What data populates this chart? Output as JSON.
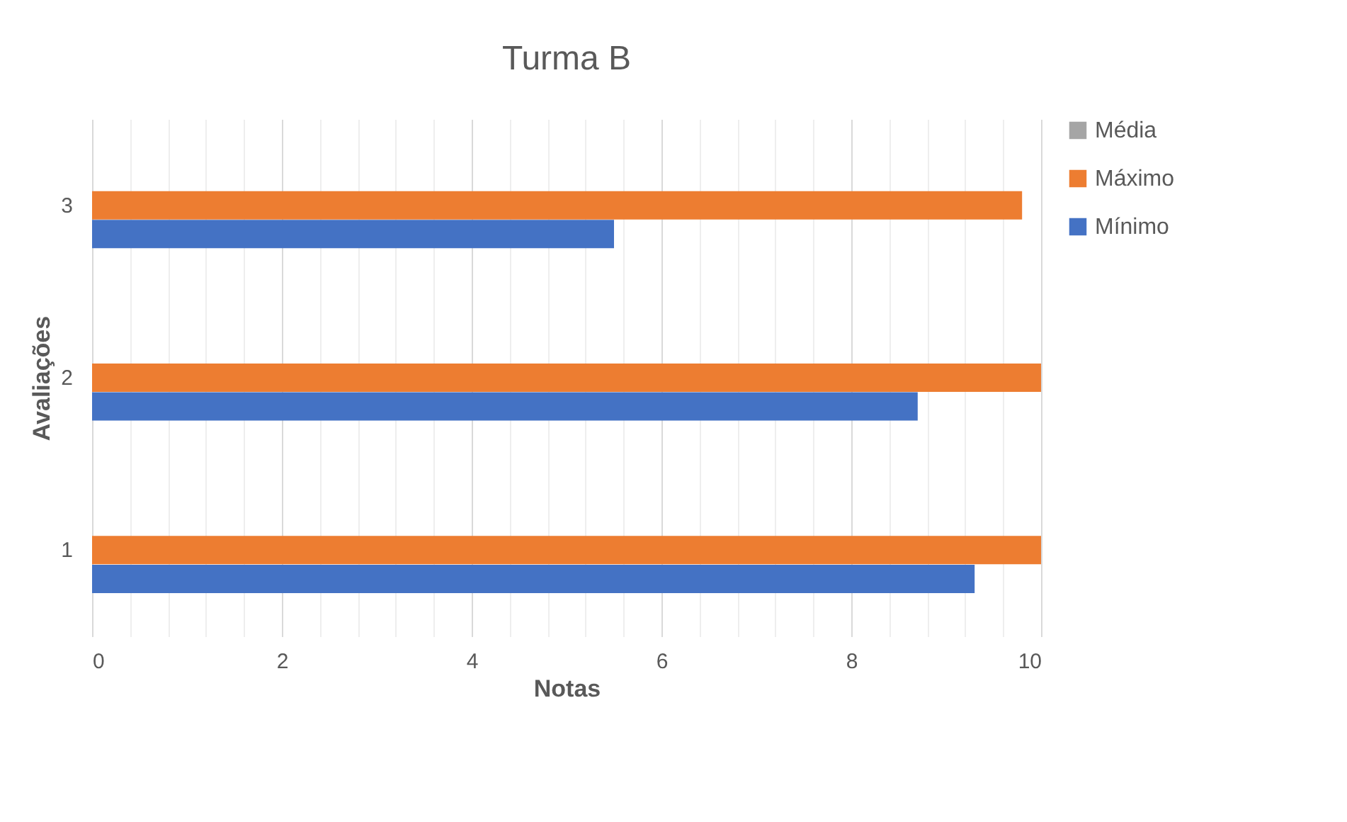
{
  "chart_data": {
    "type": "bar",
    "orientation": "horizontal",
    "title": "Turma B",
    "xlabel": "Notas",
    "ylabel": "Avaliações",
    "categories": [
      "3",
      "2",
      "1"
    ],
    "series": [
      {
        "name": "Média",
        "color": "#a5a5a5",
        "values": [
          null,
          null,
          null
        ]
      },
      {
        "name": "Máximo",
        "color": "#ed7d31",
        "values": [
          9.8,
          10,
          10
        ]
      },
      {
        "name": "Mínimo",
        "color": "#4472c4",
        "values": [
          5.5,
          8.7,
          9.3
        ]
      }
    ],
    "xlim": [
      0,
      10
    ],
    "xticks": [
      0,
      {
        "value": 0.4,
        "label": null
      },
      {
        "value": 0.8,
        "label": null
      },
      {
        "value": 1.2,
        "label": null
      },
      {
        "value": 1.6,
        "label": null
      },
      2,
      {
        "value": 2.4,
        "label": null
      },
      {
        "value": 2.8,
        "label": null
      },
      {
        "value": 3.2,
        "label": null
      },
      {
        "value": 3.6,
        "label": null
      },
      4,
      {
        "value": 4.4,
        "label": null
      },
      {
        "value": 4.8,
        "label": null
      },
      {
        "value": 5.2,
        "label": null
      },
      {
        "value": 5.6,
        "label": null
      },
      6,
      {
        "value": 6.4,
        "label": null
      },
      {
        "value": 6.8,
        "label": null
      },
      {
        "value": 7.2,
        "label": null
      },
      {
        "value": 7.6,
        "label": null
      },
      8,
      {
        "value": 8.4,
        "label": null
      },
      {
        "value": 8.8,
        "label": null
      },
      {
        "value": 9.2,
        "label": null
      },
      {
        "value": 9.6,
        "label": null
      },
      10
    ],
    "grid": "x",
    "legend": "right"
  }
}
